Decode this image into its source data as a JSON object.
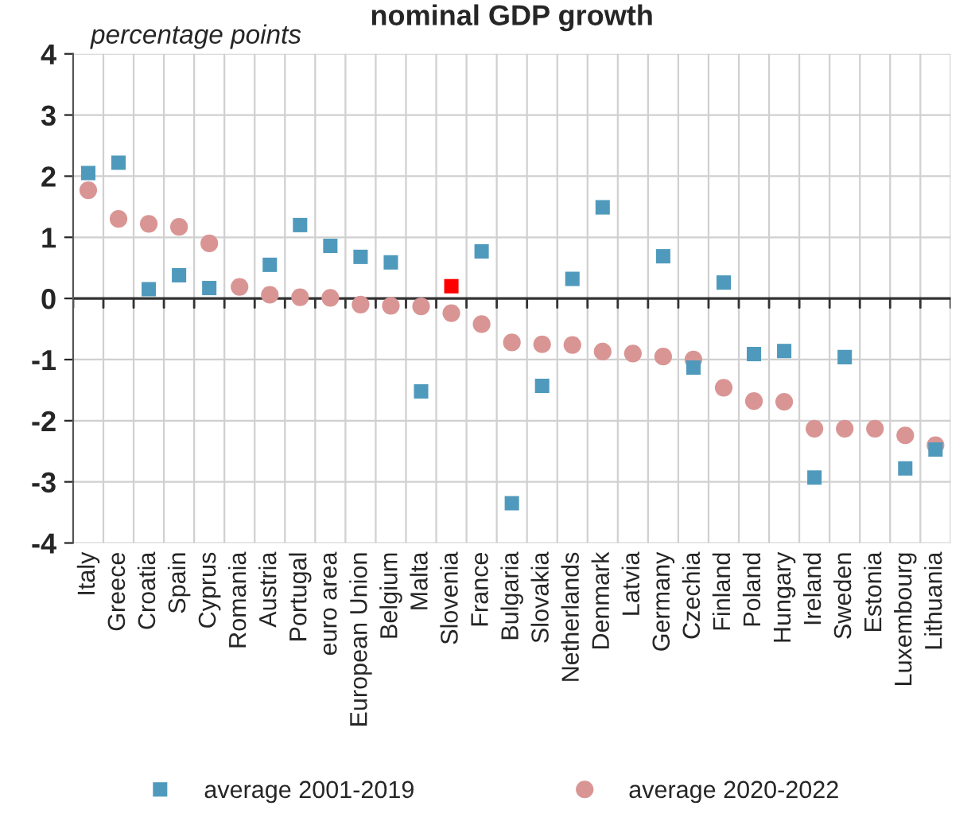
{
  "chart_data": {
    "type": "scatter",
    "title": "nominal GDP growth",
    "ylabel": "percentage points",
    "categories": [
      "Italy",
      "Greece",
      "Croatia",
      "Spain",
      "Cyprus",
      "Romania",
      "Austria",
      "Portugal",
      "euro area",
      "European Union",
      "Belgium",
      "Malta",
      "Slovenia",
      "France",
      "Bulgaria",
      "Slovakia",
      "Netherlands",
      "Denmark",
      "Latvia",
      "Germany",
      "Czechia",
      "Finland",
      "Poland",
      "Hungary",
      "Ireland",
      "Sweden",
      "Estonia",
      "Luxembourg",
      "Lithuania"
    ],
    "series": [
      {
        "name": "average 2001-2019",
        "color": "#4f9abc",
        "marker": "square",
        "colors": [
          "#4f9abc",
          "#4f9abc",
          "#4f9abc",
          "#4f9abc",
          "#4f9abc",
          "#4f9abc",
          "#4f9abc",
          "#4f9abc",
          "#4f9abc",
          "#4f9abc",
          "#4f9abc",
          "#4f9abc",
          "#ff0000",
          "#4f9abc",
          "#4f9abc",
          "#4f9abc",
          "#4f9abc",
          "#4f9abc",
          "#4f9abc",
          "#4f9abc",
          "#4f9abc",
          "#4f9abc",
          "#4f9abc",
          "#4f9abc",
          "#4f9abc",
          "#4f9abc",
          "#4f9abc",
          "#4f9abc",
          "#4f9abc"
        ],
        "values": [
          2.05,
          2.22,
          0.15,
          0.38,
          0.17,
          null,
          0.55,
          1.2,
          0.86,
          0.68,
          0.59,
          -1.52,
          0.2,
          0.77,
          -3.35,
          -1.43,
          0.32,
          1.49,
          null,
          0.69,
          -1.13,
          0.26,
          -0.91,
          -0.86,
          -2.93,
          -0.96,
          null,
          -2.78,
          -2.47
        ]
      },
      {
        "name": "average 2020-2022",
        "color": "#d99594",
        "marker": "circle",
        "values": [
          1.77,
          1.3,
          1.22,
          1.17,
          0.9,
          0.19,
          0.06,
          0.02,
          0.01,
          -0.1,
          -0.12,
          -0.13,
          -0.24,
          -0.42,
          -0.72,
          -0.75,
          -0.76,
          -0.87,
          -0.9,
          -0.95,
          -1.0,
          -1.46,
          -1.68,
          -1.69,
          -2.13,
          -2.13,
          -2.13,
          -2.24,
          -2.4
        ]
      }
    ],
    "ylim": [
      -4,
      4
    ],
    "yticks": [
      -4,
      -3,
      -2,
      -1,
      0,
      1,
      2,
      3,
      4
    ],
    "grid": true,
    "legend": "bottom"
  }
}
